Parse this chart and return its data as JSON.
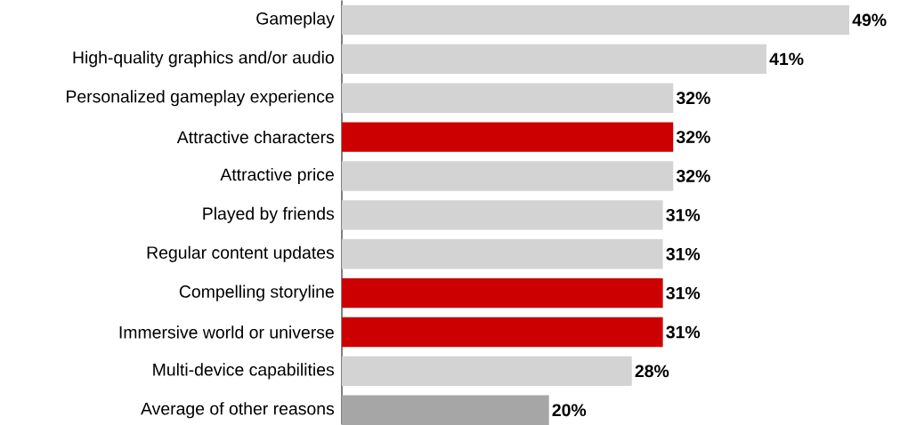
{
  "chart_data": {
    "type": "bar",
    "orientation": "horizontal",
    "categories": [
      "Gameplay",
      "High-quality graphics and/or audio",
      "Personalized gameplay experience",
      "Attractive characters",
      "Attractive price",
      "Played by friends",
      "Regular content updates",
      "Compelling storyline",
      "Immersive world or universe",
      "Multi-device capabilities",
      "Average of other reasons"
    ],
    "values": [
      49,
      41,
      32,
      32,
      32,
      31,
      31,
      31,
      31,
      28,
      20
    ],
    "colors": [
      "#d3d3d3",
      "#d3d3d3",
      "#d3d3d3",
      "#cc0000",
      "#d3d3d3",
      "#d3d3d3",
      "#d3d3d3",
      "#cc0000",
      "#cc0000",
      "#d3d3d3",
      "#a6a6a6"
    ],
    "value_labels": [
      "49%",
      "41%",
      "32%",
      "32%",
      "32%",
      "31%",
      "31%",
      "31%",
      "31%",
      "28%",
      "20%"
    ]
  }
}
